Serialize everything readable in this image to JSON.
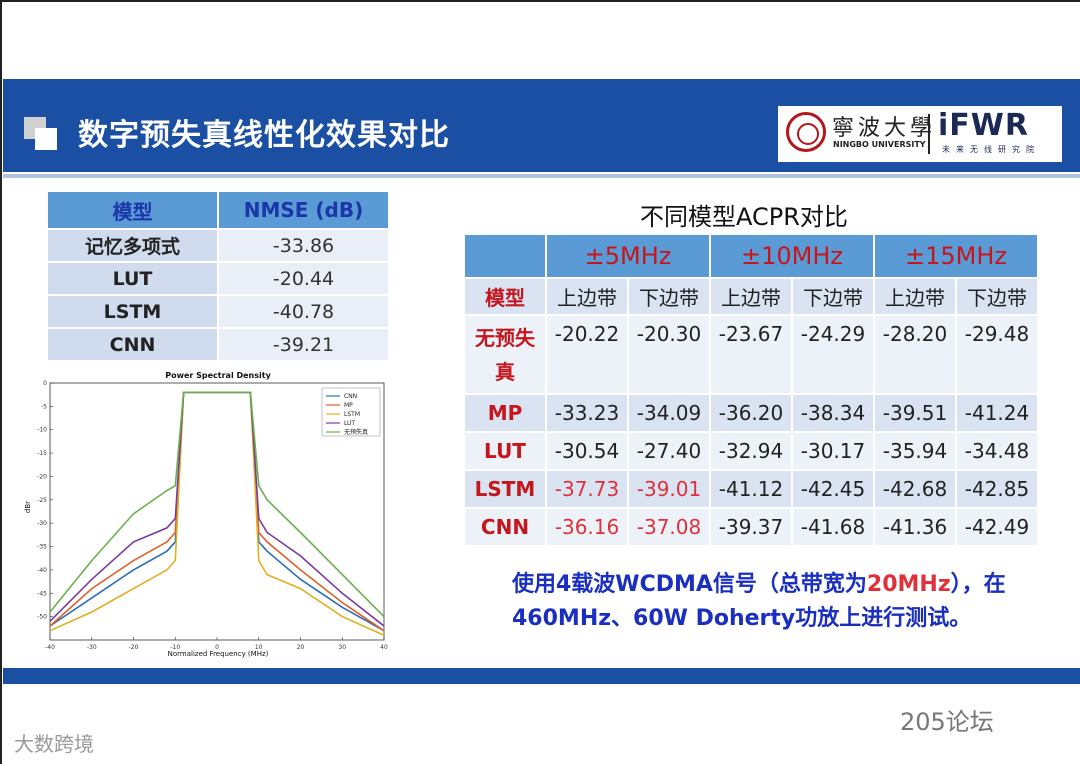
{
  "header": {
    "title": "数字预失真线性化效果对比",
    "university_cn": "寧波大學",
    "university_en": "NINGBO UNIVERSITY",
    "lab_logo": "iFWR",
    "lab_sub": "未来无线研究院"
  },
  "nmse_table": {
    "headers": [
      "模型",
      "NMSE (dB)"
    ],
    "rows": [
      {
        "model": "记忆多项式",
        "value": "-33.86"
      },
      {
        "model": "LUT",
        "value": "-20.44"
      },
      {
        "model": "LSTM",
        "value": "-40.78"
      },
      {
        "model": "CNN",
        "value": "-39.21"
      }
    ]
  },
  "acpr": {
    "title": "不同模型ACPR对比",
    "bands": [
      "±5MHz",
      "±10MHz",
      "±15MHz"
    ],
    "row_header": "模型",
    "sub_headers": [
      "上边带",
      "下边带",
      "上边带",
      "下边带",
      "上边带",
      "下边带"
    ],
    "rows": [
      {
        "model": "无预失真",
        "values": [
          "-20.22",
          "-20.30",
          "-23.67",
          "-24.29",
          "-28.20",
          "-29.48"
        ]
      },
      {
        "model": "MP",
        "values": [
          "-33.23",
          "-34.09",
          "-36.20",
          "-38.34",
          "-39.51",
          "-41.24"
        ]
      },
      {
        "model": "LUT",
        "values": [
          "-30.54",
          "-27.40",
          "-32.94",
          "-30.17",
          "-35.94",
          "-34.48"
        ]
      },
      {
        "model": "LSTM",
        "values": [
          "-37.73",
          "-39.01",
          "-41.12",
          "-42.45",
          "-42.68",
          "-42.85"
        ]
      },
      {
        "model": "CNN",
        "values": [
          "-36.16",
          "-37.08",
          "-39.37",
          "-41.68",
          "-41.36",
          "-42.49"
        ]
      }
    ],
    "highlight_color": "#e0303a"
  },
  "note": {
    "part1": "使用4载波WCDMA信号（总带宽为",
    "highlight": "20MHz",
    "part2": "），在460MHz、60W Doherty功放上进行测试。"
  },
  "chart_data": {
    "type": "line",
    "title": "Power Spectral Density",
    "xlabel": "Normalized Frequency (MHz)",
    "ylabel": "dBr",
    "xlim": [
      -40,
      40
    ],
    "ylim": [
      -55,
      0
    ],
    "x_ticks": [
      -40,
      -30,
      -20,
      -10,
      0,
      10,
      20,
      30,
      40
    ],
    "y_ticks": [
      0,
      -5,
      -10,
      -15,
      -20,
      -25,
      -30,
      -35,
      -40,
      -45,
      -50
    ],
    "legend_position": "top-right",
    "series": [
      {
        "name": "CNN",
        "color": "#2a6fb8",
        "x": [
          -40,
          -30,
          -20,
          -12,
          -10,
          -8,
          8,
          10,
          12,
          20,
          30,
          40
        ],
        "y": [
          -52,
          -46,
          -40,
          -36,
          -34,
          -2,
          -2,
          -34,
          -36,
          -42,
          -48,
          -53
        ]
      },
      {
        "name": "MP",
        "color": "#e0602a",
        "x": [
          -40,
          -30,
          -20,
          -12,
          -10,
          -8,
          8,
          10,
          12,
          20,
          30,
          40
        ],
        "y": [
          -52,
          -44,
          -38,
          -34,
          -32,
          -2,
          -2,
          -32,
          -34,
          -40,
          -47,
          -53
        ]
      },
      {
        "name": "LSTM",
        "color": "#e0b020",
        "x": [
          -40,
          -30,
          -20,
          -12,
          -10,
          -8,
          8,
          10,
          12,
          20,
          30,
          40
        ],
        "y": [
          -53,
          -49,
          -44,
          -40,
          -38,
          -2,
          -2,
          -38,
          -41,
          -44,
          -50,
          -54
        ]
      },
      {
        "name": "LUT",
        "color": "#7a3aa0",
        "x": [
          -40,
          -30,
          -20,
          -12,
          -10,
          -8,
          8,
          10,
          12,
          20,
          30,
          40
        ],
        "y": [
          -51,
          -42,
          -34,
          -31,
          -29,
          -2,
          -2,
          -29,
          -32,
          -37,
          -45,
          -52
        ]
      },
      {
        "name": "无预失真",
        "color": "#6ab04c",
        "x": [
          -40,
          -30,
          -20,
          -12,
          -10,
          -8,
          8,
          10,
          12,
          20,
          30,
          40
        ],
        "y": [
          -49,
          -38,
          -28,
          -23,
          -22,
          -2,
          -2,
          -22,
          -25,
          -32,
          -41,
          -50
        ]
      }
    ]
  },
  "watermarks": {
    "left": "大数跨境",
    "right": "205论坛"
  }
}
